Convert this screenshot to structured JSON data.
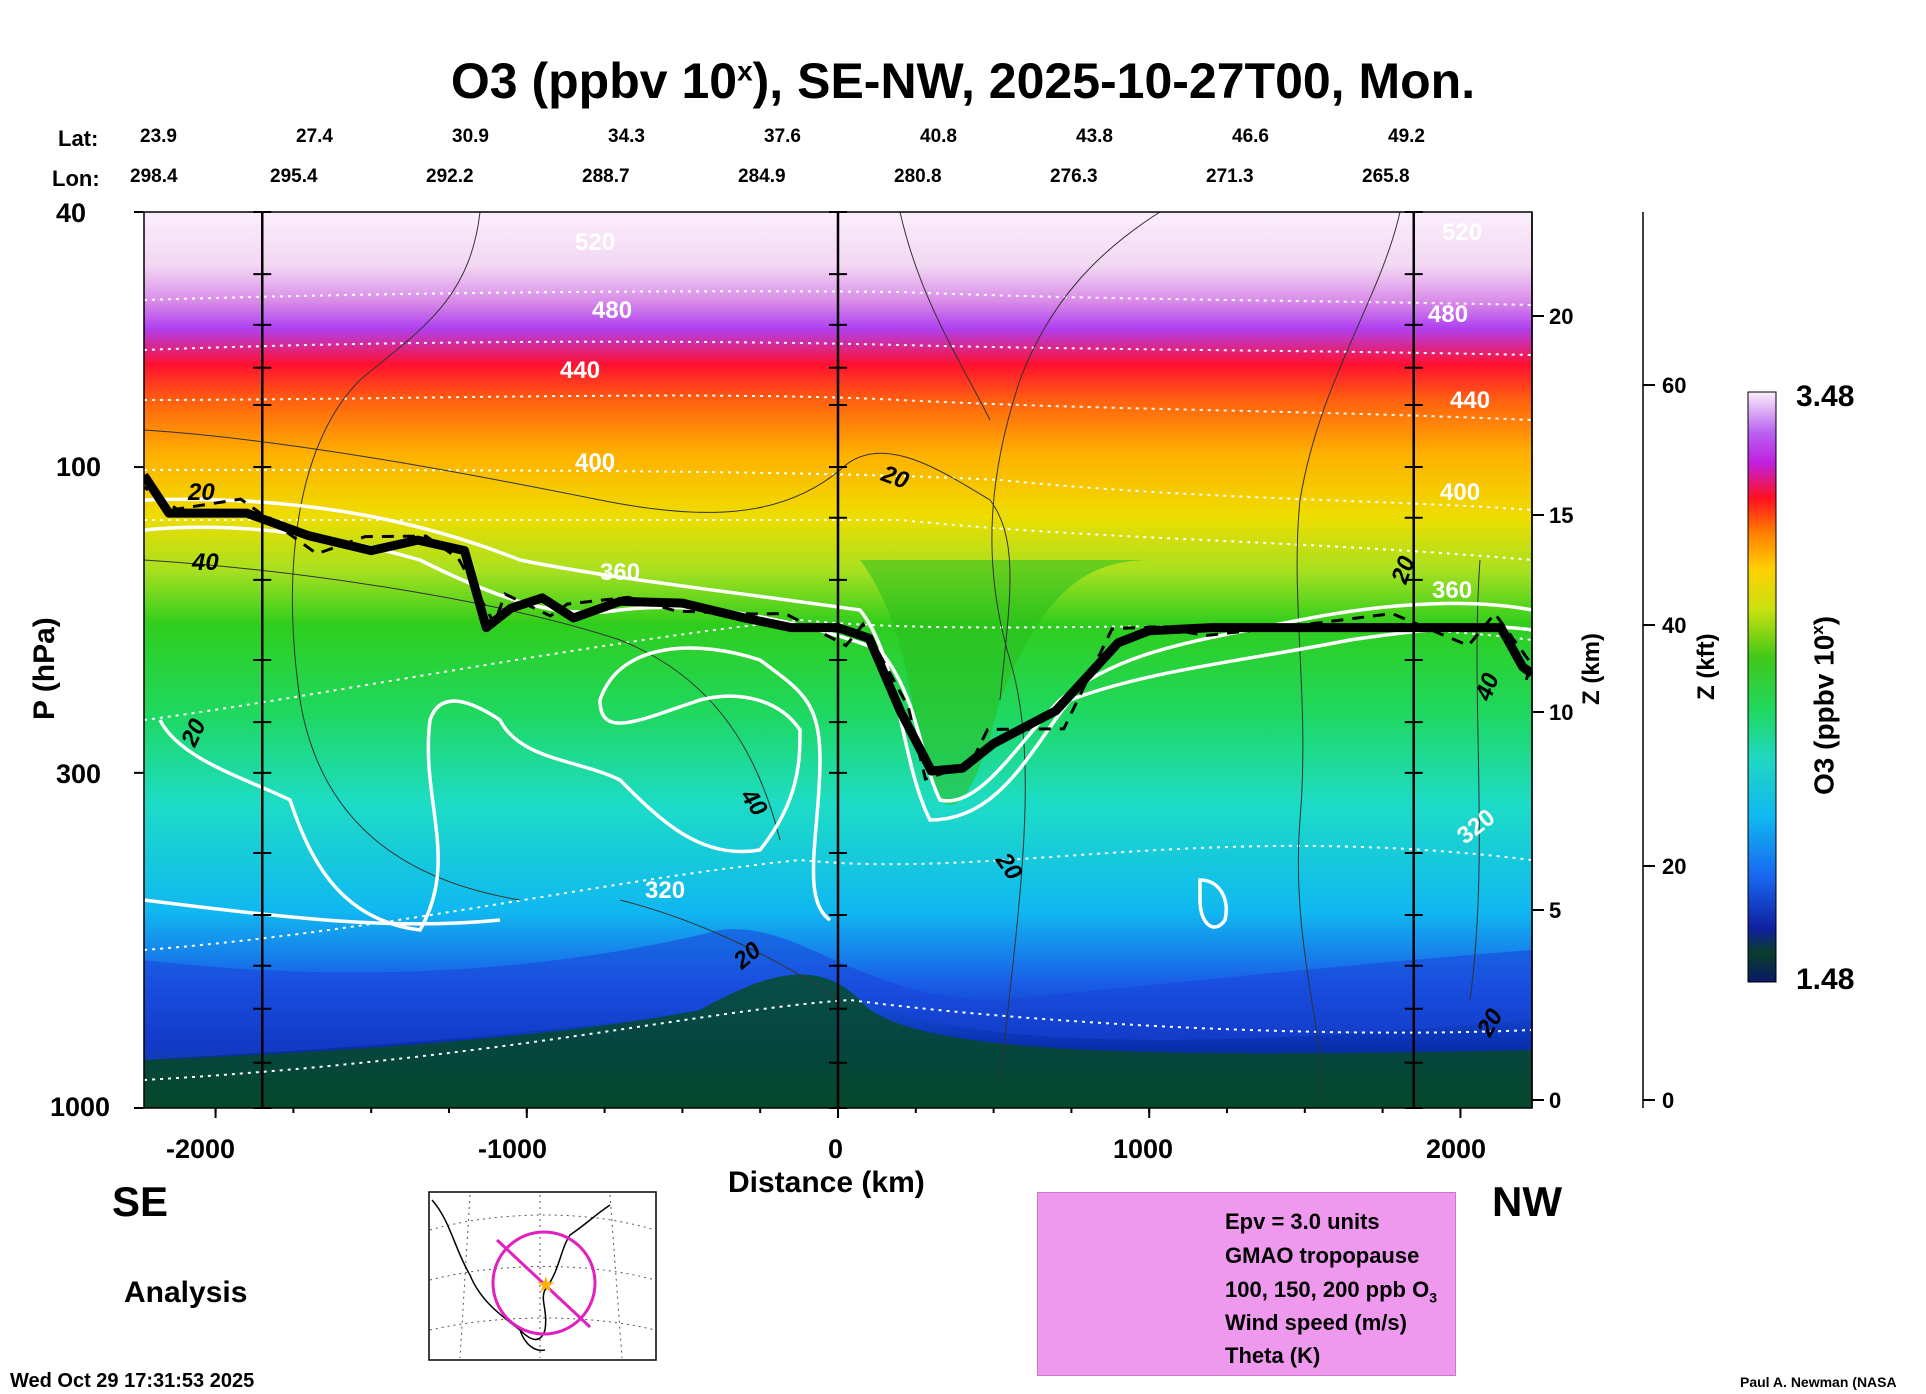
{
  "title_main": "O3 (ppbv 10",
  "title_sup": "x",
  "title_rest": "), SE-NW, 2025-10-27T00, Mon.",
  "lat_label": "Lat:",
  "lon_label": "Lon:",
  "lats": [
    "23.9",
    "27.4",
    "30.9",
    "34.3",
    "37.6",
    "40.8",
    "43.8",
    "46.6",
    "49.2"
  ],
  "lons": [
    "298.4",
    "295.4",
    "292.2",
    "288.7",
    "284.9",
    "280.8",
    "276.3",
    "271.3",
    "265.8"
  ],
  "left_direction": "SE",
  "right_direction": "NW",
  "analysis_label": "Analysis",
  "timestamp": "Wed Oct 29 17:31:53 2025",
  "credit": "Paul A. Newman (NASA",
  "colorbar": {
    "max_label": "3.48",
    "min_label": "1.48",
    "title": "O3 (ppbv 10",
    "title_sup": "x",
    "title_end": ")"
  },
  "legend": [
    {
      "label": "Epv = 3.0 units",
      "style": "dashed-black"
    },
    {
      "label": "GMAO tropopause",
      "style": "thick-black"
    },
    {
      "label": "100, 150, 200 ppb O",
      "sub": "3",
      "style": "white"
    },
    {
      "label": "Wind speed (m/s)",
      "style": "thin-black"
    },
    {
      "label": "Theta (K)",
      "style": "dotted-white"
    }
  ],
  "chart_data": {
    "type": "heatmap",
    "title": "O3 (ppbv 10^x), SE-NW, 2025-10-27T00, Mon.",
    "xlabel": "Distance (km)",
    "ylabel": "P (hPa)",
    "y2label": "Z (km)",
    "y3label": "Z (kft)",
    "xlim": [
      -2230,
      2230
    ],
    "ylim": [
      1000,
      40
    ],
    "yscale": "log",
    "x_ticks": [
      -2000,
      -1000,
      0,
      1000,
      2000
    ],
    "x_tick_labels": [
      "-2000",
      "-1000",
      "0",
      "1000",
      "2000"
    ],
    "p_ticks": [
      40,
      100,
      300,
      1000
    ],
    "p_tick_labels": [
      "40",
      "100",
      "300",
      "1000"
    ],
    "z_km_ticks": [
      "0",
      "5",
      "10",
      "15",
      "20"
    ],
    "z_kft_ticks": [
      "0",
      "20",
      "40",
      "60"
    ],
    "colorbar_range": [
      1.48,
      3.48
    ],
    "tropopause_pressure_hpa": {
      "x": [
        -2230,
        -2150,
        -1900,
        -1700,
        -1500,
        -1350,
        -1200,
        -1130,
        -1050,
        -950,
        -850,
        -700,
        -500,
        -300,
        -150,
        0,
        100,
        200,
        300,
        400,
        500,
        700,
        900,
        1000,
        1200,
        1500,
        1800,
        2000,
        2130,
        2200,
        2230
      ],
      "p": [
        103,
        118,
        118,
        128,
        135,
        130,
        135,
        178,
        166,
        160,
        172,
        162,
        163,
        172,
        178,
        178,
        185,
        240,
        298,
        295,
        270,
        240,
        188,
        180,
        178,
        178,
        178,
        178,
        178,
        205,
        210
      ]
    },
    "contour_labels": {
      "theta_K": [
        "320",
        "360",
        "400",
        "440",
        "480",
        "520"
      ],
      "wind_speed_ms": [
        "20",
        "40"
      ]
    },
    "grid": false,
    "legend_position": "bottom-center"
  }
}
